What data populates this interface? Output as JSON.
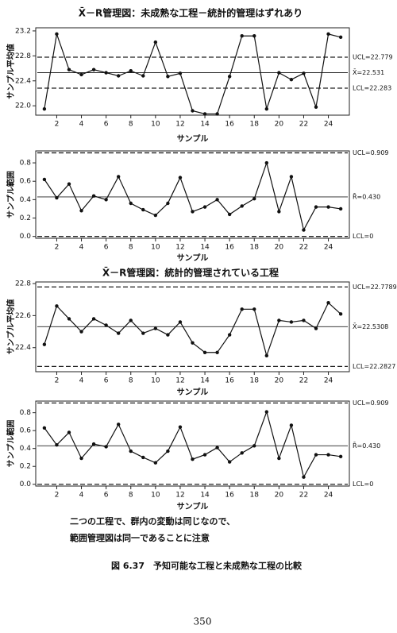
{
  "chart_data": [
    {
      "type": "line",
      "title": "X̄－R管理図：未成熟な工程－統計的管理はずれあり",
      "y_label": "サンプル平均値",
      "x_label": "サンプル",
      "x": [
        1,
        2,
        3,
        4,
        5,
        6,
        7,
        8,
        9,
        10,
        11,
        12,
        13,
        14,
        15,
        16,
        17,
        18,
        19,
        20,
        21,
        22,
        23,
        24,
        25
      ],
      "xlim": [
        0.3,
        25.7
      ],
      "xticks": [
        2,
        4,
        6,
        8,
        10,
        12,
        14,
        16,
        18,
        20,
        22,
        24
      ],
      "ylim": [
        21.85,
        23.25
      ],
      "yticks": [
        {
          "value": 22,
          "label": "22.0"
        },
        22.4,
        22.8,
        23.2
      ],
      "series": [
        {
          "color": "#111111",
          "values": [
            21.95,
            23.15,
            22.58,
            22.5,
            22.58,
            22.53,
            22.48,
            22.56,
            22.48,
            23.02,
            22.47,
            22.52,
            21.92,
            21.87,
            21.87,
            22.47,
            23.12,
            23.12,
            21.95,
            22.53,
            22.42,
            22.52,
            21.98,
            23.15,
            23.1
          ]
        }
      ],
      "limits": [
        {
          "value": 22.779,
          "label": "UCL=22.779",
          "style": "dashed"
        },
        {
          "value": 22.531,
          "label": "X̄=22.531",
          "style": "solid"
        },
        {
          "value": 22.283,
          "label": "LCL=22.283",
          "style": "dashed"
        }
      ]
    },
    {
      "type": "line",
      "y_label": "サンプル範囲",
      "x_label": "サンプル",
      "x": [
        1,
        2,
        3,
        4,
        5,
        6,
        7,
        8,
        9,
        10,
        11,
        12,
        13,
        14,
        15,
        16,
        17,
        18,
        19,
        20,
        21,
        22,
        23,
        24,
        25
      ],
      "xlim": [
        0.3,
        25.7
      ],
      "xticks": [
        2,
        4,
        6,
        8,
        10,
        12,
        14,
        16,
        18,
        20,
        22,
        24
      ],
      "ylim": [
        -0.02,
        0.93
      ],
      "yticks": [
        {
          "value": 0,
          "label": "0.0"
        },
        0.2,
        0.4,
        0.6,
        0.8
      ],
      "series": [
        {
          "color": "#111111",
          "values": [
            0.62,
            0.42,
            0.57,
            0.28,
            0.44,
            0.4,
            0.65,
            0.36,
            0.29,
            0.23,
            0.36,
            0.64,
            0.27,
            0.32,
            0.4,
            0.24,
            0.33,
            0.41,
            0.8,
            0.27,
            0.65,
            0.07,
            0.32,
            0.32,
            0.3
          ]
        }
      ],
      "limits": [
        {
          "value": 0.909,
          "label": "UCL=0.909",
          "style": "dashed"
        },
        {
          "value": 0.43,
          "label": "R̄=0.430",
          "style": "solid"
        },
        {
          "value": 0,
          "label": "LCL=0",
          "style": "dashed"
        }
      ]
    },
    {
      "type": "line",
      "title": "X̄－R管理図：統計的管理されている工程",
      "y_label": "サンプル平均値",
      "x_label": "サンプル",
      "x": [
        1,
        2,
        3,
        4,
        5,
        6,
        7,
        8,
        9,
        10,
        11,
        12,
        13,
        14,
        15,
        16,
        17,
        18,
        19,
        20,
        21,
        22,
        23,
        24,
        25
      ],
      "xlim": [
        0.3,
        25.7
      ],
      "xticks": [
        2,
        4,
        6,
        8,
        10,
        12,
        14,
        16,
        18,
        20,
        22,
        24
      ],
      "ylim": [
        22.25,
        22.81
      ],
      "yticks": [
        22.4,
        22.6,
        22.8
      ],
      "series": [
        {
          "color": "#111111",
          "values": [
            22.42,
            22.66,
            22.58,
            22.5,
            22.58,
            22.54,
            22.49,
            22.57,
            22.49,
            22.52,
            22.48,
            22.56,
            22.43,
            22.37,
            22.37,
            22.48,
            22.64,
            22.64,
            22.35,
            22.57,
            22.56,
            22.57,
            22.52,
            22.68,
            22.61
          ]
        }
      ],
      "limits": [
        {
          "value": 22.7789,
          "label": "UCL=22.7789",
          "style": "dashed"
        },
        {
          "value": 22.5308,
          "label": "X̄=22.5308",
          "style": "solid"
        },
        {
          "value": 22.2827,
          "label": "LCL=22.2827",
          "style": "dashed"
        }
      ]
    },
    {
      "type": "line",
      "y_label": "サンプル範囲",
      "x_label": "サンプル",
      "x": [
        1,
        2,
        3,
        4,
        5,
        6,
        7,
        8,
        9,
        10,
        11,
        12,
        13,
        14,
        15,
        16,
        17,
        18,
        19,
        20,
        21,
        22,
        23,
        24,
        25
      ],
      "xlim": [
        0.3,
        25.7
      ],
      "xticks": [
        2,
        4,
        6,
        8,
        10,
        12,
        14,
        16,
        18,
        20,
        22,
        24
      ],
      "ylim": [
        -0.02,
        0.93
      ],
      "yticks": [
        {
          "value": 0,
          "label": "0.0"
        },
        0.2,
        0.4,
        0.6,
        0.8
      ],
      "series": [
        {
          "color": "#111111",
          "values": [
            0.63,
            0.44,
            0.58,
            0.29,
            0.45,
            0.42,
            0.67,
            0.37,
            0.3,
            0.24,
            0.37,
            0.64,
            0.28,
            0.33,
            0.41,
            0.25,
            0.35,
            0.43,
            0.81,
            0.29,
            0.66,
            0.08,
            0.33,
            0.33,
            0.31
          ]
        }
      ],
      "limits": [
        {
          "value": 0.909,
          "label": "UCL=0.909",
          "style": "dashed"
        },
        {
          "value": 0.43,
          "label": "R̄=0.430",
          "style": "solid"
        },
        {
          "value": 0,
          "label": "LCL=0",
          "style": "dashed"
        }
      ]
    }
  ],
  "note": [
    "二つの工程で、群内の変動は同じなので、",
    "範囲管理図は同一であることに注意"
  ],
  "caption": "図 6.37　予知可能な工程と未成熟な工程の比較",
  "page_number": "350"
}
